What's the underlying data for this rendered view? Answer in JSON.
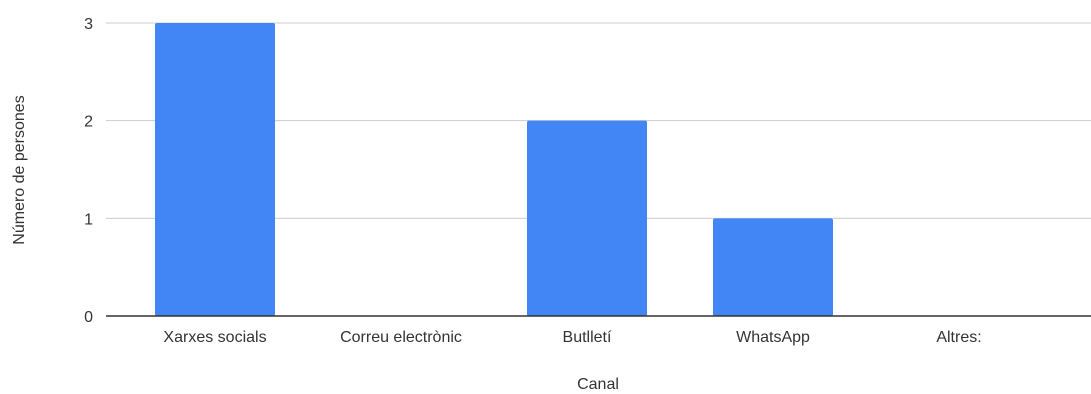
{
  "chart_data": {
    "type": "bar",
    "xlabel": "Canal",
    "ylabel": "Número de persones",
    "categories": [
      "Xarxes socials",
      "Correu electrònic",
      "Butlletí",
      "WhatsApp",
      "Altres:"
    ],
    "values": [
      3,
      0,
      2,
      1,
      0
    ],
    "ylim": [
      0,
      3
    ],
    "yticks": [
      "0",
      "1",
      "2",
      "3"
    ],
    "grid": true,
    "legend": "none",
    "colors": {
      "bar": "#4285f4",
      "grid": "#cccccc",
      "axis": "#333333"
    }
  }
}
